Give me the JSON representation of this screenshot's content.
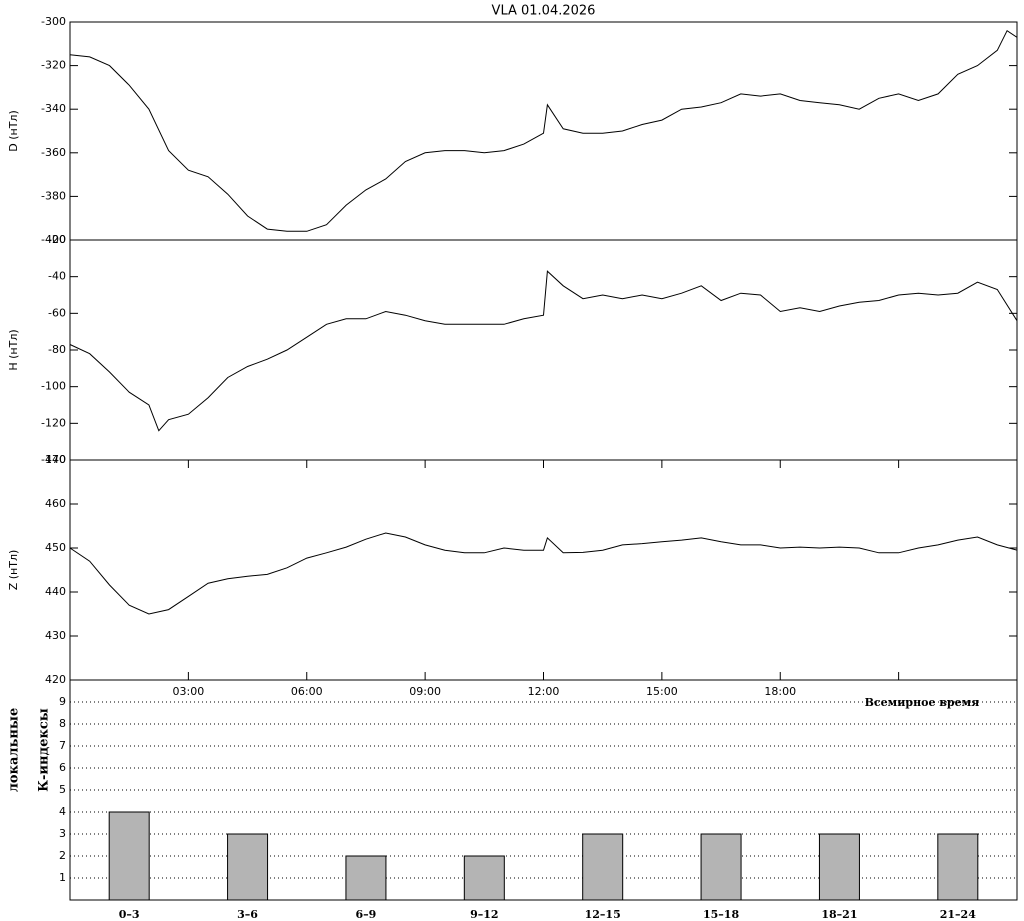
{
  "chart_data": [
    {
      "type": "line",
      "title": "VLA   01.04.2026",
      "ylabel": "D (нТл)",
      "color": "#000000",
      "x": [
        0,
        0.5,
        1,
        1.5,
        2,
        2.5,
        3,
        3.5,
        4,
        4.5,
        5,
        5.5,
        6,
        6.5,
        7,
        7.5,
        8,
        8.5,
        9,
        9.5,
        10,
        10.5,
        11,
        11.5,
        12,
        12.1,
        12.5,
        13,
        13.5,
        14,
        14.5,
        15,
        15.5,
        16,
        16.5,
        17,
        17.5,
        18,
        18.5,
        19,
        19.5,
        20,
        20.5,
        21,
        21.5,
        22,
        22.5,
        23,
        23.5,
        23.75,
        24
      ],
      "values": [
        -315,
        -316,
        -320,
        -329,
        -340,
        -359,
        -368,
        -371,
        -379,
        -389,
        -395,
        -396,
        -396,
        -393,
        -384,
        -377,
        -372,
        -364,
        -360,
        -359,
        -359,
        -360,
        -359,
        -356,
        -351,
        -338,
        -349,
        -351,
        -351,
        -350,
        -347,
        -345,
        -340,
        -339,
        -337,
        -333,
        -334,
        -333,
        -336,
        -337,
        -338,
        -340,
        -335,
        -333,
        -336,
        -333,
        -324,
        -320,
        -313,
        -304,
        -307
      ],
      "xlim": [
        0,
        24
      ],
      "ylim": [
        -400,
        -300
      ],
      "yticks": [
        -400,
        -380,
        -360,
        -340,
        -320,
        -300
      ]
    },
    {
      "type": "line",
      "ylabel": "H (нТл)",
      "color": "#000000",
      "x": [
        0,
        0.5,
        1,
        1.5,
        2,
        2.25,
        2.5,
        3,
        3.5,
        4,
        4.5,
        5,
        5.5,
        6,
        6.5,
        7,
        7.5,
        8,
        8.5,
        9,
        9.5,
        10,
        10.5,
        11,
        11.5,
        12,
        12.1,
        12.5,
        13,
        13.5,
        14,
        14.5,
        15,
        15.5,
        16,
        16.5,
        17,
        17.5,
        18,
        18.5,
        19,
        19.5,
        20,
        20.5,
        21,
        21.5,
        22,
        22.5,
        23,
        23.5,
        24
      ],
      "values": [
        -77,
        -82,
        -92,
        -103,
        -110,
        -124,
        -118,
        -115,
        -106,
        -95,
        -89,
        -85,
        -80,
        -73,
        -66,
        -63,
        -63,
        -59,
        -61,
        -64,
        -66,
        -66,
        -66,
        -66,
        -63,
        -61,
        -37,
        -45,
        -52,
        -50,
        -52,
        -50,
        -52,
        -49,
        -45,
        -53,
        -49,
        -50,
        -59,
        -57,
        -59,
        -56,
        -54,
        -53,
        -50,
        -49,
        -50,
        -49,
        -43,
        -47,
        -64
      ],
      "xlim": [
        0,
        24
      ],
      "ylim": [
        -140,
        -20
      ],
      "yticks": [
        -140,
        -120,
        -100,
        -80,
        -60,
        -40,
        -20
      ]
    },
    {
      "type": "line",
      "ylabel": "Z (нТл)",
      "color": "#000000",
      "xlabel": "Всемирное время",
      "x": [
        0,
        0.5,
        1,
        1.5,
        2,
        2.5,
        3,
        3.5,
        4,
        4.5,
        5,
        5.5,
        6,
        6.5,
        7,
        7.5,
        8,
        8.5,
        9,
        9.5,
        10,
        10.5,
        11,
        11.5,
        12,
        12.1,
        12.5,
        13,
        13.5,
        14,
        14.5,
        15,
        15.5,
        16,
        16.5,
        17,
        17.5,
        18,
        18.5,
        19,
        19.5,
        20,
        20.5,
        21,
        21.5,
        22,
        22.5,
        23,
        23.5,
        24
      ],
      "values": [
        450,
        447,
        441.6,
        437,
        435,
        436,
        439,
        442,
        443,
        443.6,
        444,
        445.5,
        447.7,
        448.9,
        450.2,
        452,
        453.4,
        452.5,
        450.7,
        449.5,
        448.9,
        448.9,
        450,
        449.5,
        449.5,
        452.3,
        448.9,
        449,
        449.5,
        450.7,
        451,
        451.4,
        451.8,
        452.3,
        451.4,
        450.7,
        450.7,
        450,
        450.2,
        450,
        450.2,
        450,
        448.9,
        448.9,
        450,
        450.7,
        451.8,
        452.5,
        450.7,
        449.5
      ],
      "xlim": [
        0,
        24
      ],
      "ylim": [
        420,
        470
      ],
      "yticks": [
        420,
        430,
        440,
        450,
        460,
        470
      ],
      "xticks": [
        {
          "value": 3,
          "label": "03:00"
        },
        {
          "value": 6,
          "label": "06:00"
        },
        {
          "value": 9,
          "label": "09:00"
        },
        {
          "value": 12,
          "label": "12:00"
        },
        {
          "value": 15,
          "label": "15:00"
        },
        {
          "value": 18,
          "label": "18:00"
        },
        {
          "value": 21,
          "label": ""
        }
      ]
    },
    {
      "type": "bar",
      "ylabel": [
        "локальные",
        "К-индексы"
      ],
      "color": "#b4b4b4",
      "grid": true,
      "categories": [
        "0–3",
        "3–6",
        "6–9",
        "9–12",
        "12–15",
        "15–18",
        "18–21",
        "21–24"
      ],
      "values": [
        4,
        3,
        2,
        2,
        3,
        3,
        3,
        3
      ],
      "ylim": [
        0,
        10
      ],
      "yticks": [
        1,
        2,
        3,
        4,
        5,
        6,
        7,
        8,
        9
      ]
    }
  ]
}
